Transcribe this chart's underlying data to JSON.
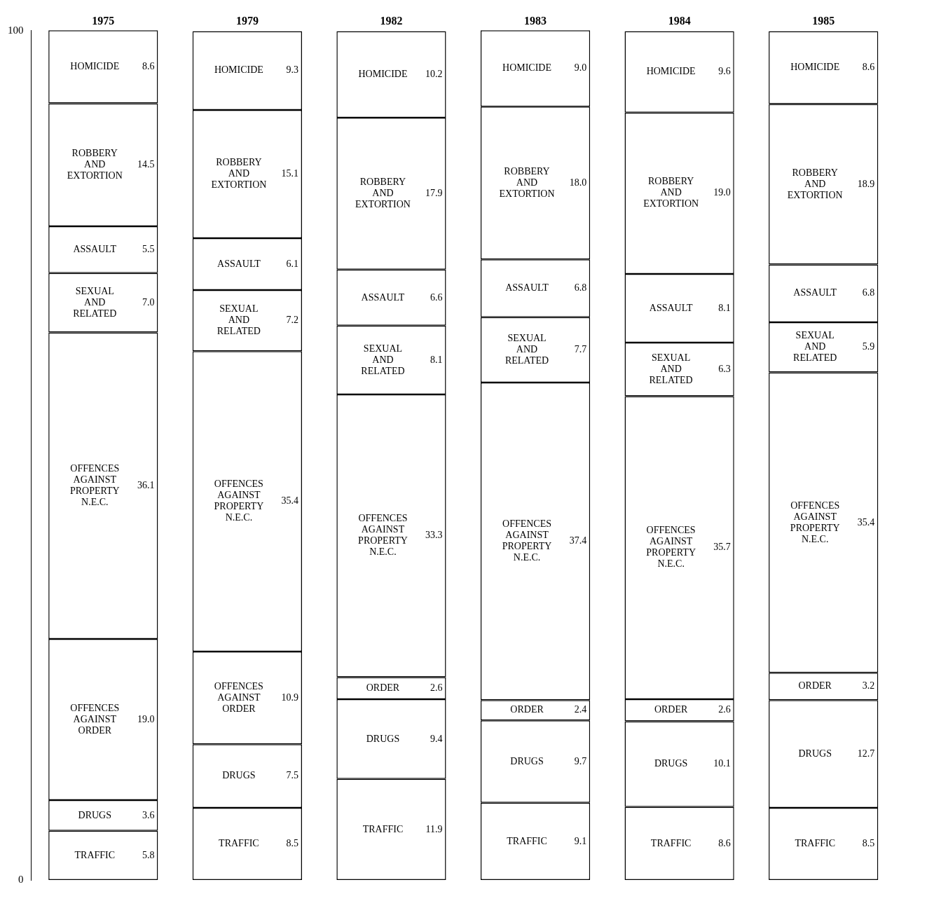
{
  "chart_data": {
    "type": "bar",
    "stacked": true,
    "categories": [
      "1975",
      "1979",
      "1982",
      "1983",
      "1984",
      "1985"
    ],
    "ylim": [
      0,
      100.1
    ],
    "yticks": [
      0,
      100
    ],
    "grid": false,
    "legend": false,
    "series": [
      {
        "name": "TRAFFIC",
        "color": "#ffffff",
        "values": [
          5.8,
          8.5,
          11.9,
          9.1,
          8.6,
          8.5
        ],
        "value_labels": [
          "5.8",
          "8.5",
          "11.9",
          "9.1",
          "8.6",
          "8.5"
        ]
      },
      {
        "name": "DRUGS",
        "color": "#ffffff",
        "values": [
          3.6,
          7.5,
          9.4,
          9.7,
          10.1,
          12.7
        ],
        "value_labels": [
          "3.6",
          "7.5",
          "9.4",
          "9.7",
          "10.1",
          "12.7"
        ]
      },
      {
        "name": "OFFENCES AGAINST ORDER",
        "color": "#ffffff",
        "values": [
          19.0,
          10.9,
          null,
          null,
          null,
          null
        ],
        "value_labels": [
          "19.0",
          "10.9",
          null,
          null,
          null,
          null
        ]
      },
      {
        "name": "ORDER",
        "color": "#ffffff",
        "values": [
          null,
          null,
          2.6,
          2.4,
          2.6,
          3.2
        ],
        "value_labels": [
          null,
          null,
          "2.6",
          "2.4",
          "2.6",
          "3.2"
        ]
      },
      {
        "name": "OFFENCES AGAINST PROPERTY N.E.C.",
        "color": "#ffffff",
        "values": [
          36.1,
          35.4,
          33.3,
          37.4,
          35.7,
          35.4
        ],
        "value_labels": [
          "36.1",
          "35.4",
          "33.3",
          "37.4",
          "35.7",
          "35.4"
        ]
      },
      {
        "name": "SEXUAL AND RELATED",
        "color": "#ffffff",
        "values": [
          7.0,
          7.2,
          8.1,
          7.7,
          6.3,
          5.9
        ],
        "value_labels": [
          "7.0",
          "7.2",
          "8.1",
          "7.7",
          "6.3",
          "5.9"
        ]
      },
      {
        "name": "ASSAULT",
        "color": "#ffffff",
        "values": [
          5.5,
          6.1,
          6.6,
          6.8,
          8.1,
          6.8
        ],
        "value_labels": [
          "5.5",
          "6.1",
          "6.6",
          "6.8",
          "8.1",
          "6.8"
        ]
      },
      {
        "name": "ROBBERY AND EXTORTION",
        "color": "#ffffff",
        "values": [
          14.5,
          15.1,
          17.9,
          18.0,
          19.0,
          18.9
        ],
        "value_labels": [
          "14.5",
          "15.1",
          "17.9",
          "18.0",
          "19.0",
          "18.9"
        ]
      },
      {
        "name": "HOMICIDE",
        "color": "#ffffff",
        "values": [
          8.6,
          9.3,
          10.2,
          9.0,
          9.6,
          8.6
        ],
        "value_labels": [
          "8.6",
          "9.3",
          "10.2",
          "9.0",
          "9.6",
          "8.6"
        ]
      }
    ]
  }
}
